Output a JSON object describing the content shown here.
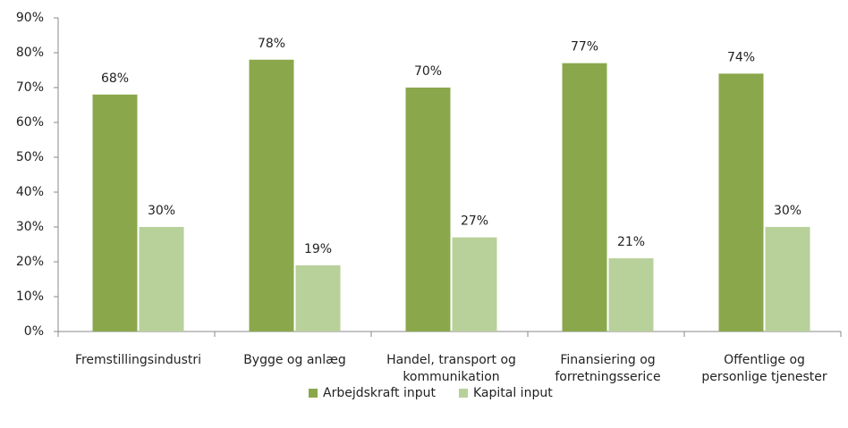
{
  "chart_data": {
    "type": "bar",
    "categories": [
      "Fremstillingsindustri",
      "Bygge og anlæg",
      "Handel, transport og\nkommunikation",
      "Finansiering og\nforretningsserice",
      "Offentlige og\npersonlige tjenester"
    ],
    "series": [
      {
        "name": "Arbejdskraft input",
        "color": "#8aa84b",
        "values": [
          68,
          78,
          70,
          77,
          74
        ],
        "value_labels": [
          "68%",
          "78%",
          "70%",
          "77%",
          "74%"
        ]
      },
      {
        "name": "Kapital input",
        "color": "#b8d09a",
        "values": [
          30,
          19,
          27,
          21,
          30
        ],
        "value_labels": [
          "30%",
          "19%",
          "27%",
          "21%",
          "30%"
        ]
      }
    ],
    "ylim": [
      0,
      90
    ],
    "yticks": [
      {
        "value": 0,
        "label": "0%"
      },
      {
        "value": 10,
        "label": "10%"
      },
      {
        "value": 20,
        "label": "20%"
      },
      {
        "value": 30,
        "label": "30%"
      },
      {
        "value": 40,
        "label": "40%"
      },
      {
        "value": 50,
        "label": "50%"
      },
      {
        "value": 60,
        "label": "60%"
      },
      {
        "value": 70,
        "label": "70%"
      },
      {
        "value": 80,
        "label": "80%"
      },
      {
        "value": 90,
        "label": "90%"
      }
    ],
    "legend": "bottom"
  }
}
